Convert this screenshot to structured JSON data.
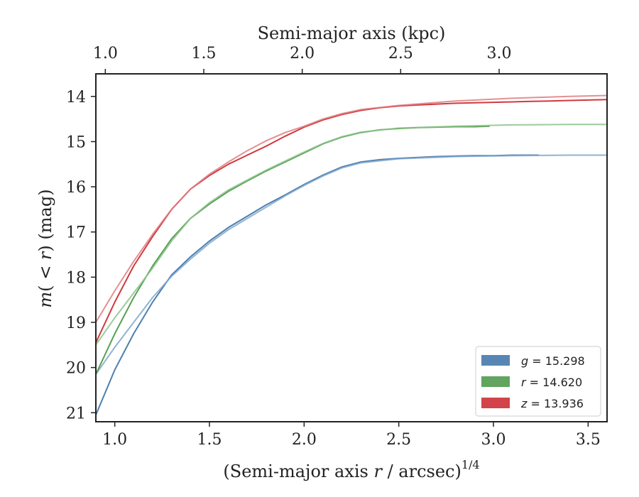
{
  "chart_data": {
    "type": "line",
    "title": "",
    "xlabel": "(Semi-major axis r / arcsec)^1/4",
    "xlabel_parts": {
      "prefix": "(Semi-major axis ",
      "var": "r",
      "middle": " / arcsec)",
      "sup": "1/4"
    },
    "ylabel": "m(<r) (mag)",
    "ylabel_parts": {
      "m": "m",
      "open": "(",
      "lt": " < ",
      "r": "r",
      "close": ")",
      "unit": " (mag)"
    },
    "top_xlabel": "Semi-major axis (kpc)",
    "xlim": [
      0.9,
      3.6
    ],
    "ylim": [
      21.2,
      13.5
    ],
    "y_inverted": true,
    "x_ticks": [
      1.0,
      1.5,
      2.0,
      2.5,
      3.0,
      3.5
    ],
    "x_tick_labels": [
      "1.0",
      "1.5",
      "2.0",
      "2.5",
      "3.0",
      "3.5"
    ],
    "y_ticks": [
      14,
      15,
      16,
      17,
      18,
      19,
      20,
      21
    ],
    "y_tick_labels": [
      "14",
      "15",
      "16",
      "17",
      "18",
      "19",
      "20",
      "21"
    ],
    "top_ticks_x": [
      0.95,
      1.47,
      1.99,
      2.51,
      3.03
    ],
    "top_tick_labels": [
      "1.0",
      "1.5",
      "2.0",
      "2.5",
      "3.0"
    ],
    "grid": false,
    "legend_position": "lower-right",
    "legend": [
      {
        "band": "g",
        "value": "15.298",
        "color": "#4e7fb0"
      },
      {
        "band": "r",
        "value": "14.620",
        "color": "#58a055"
      },
      {
        "band": "z",
        "value": "13.936",
        "color": "#cf3a3f"
      }
    ],
    "series": [
      {
        "name": "g",
        "color": "#4e7fb0",
        "alpha": 1.0,
        "x": [
          0.9,
          1.0,
          1.1,
          1.2,
          1.3,
          1.4,
          1.5,
          1.6,
          1.7,
          1.8,
          1.9,
          2.0,
          2.1,
          2.2,
          2.3,
          2.4,
          2.5,
          2.6,
          2.7,
          2.8,
          2.9,
          3.0,
          3.1,
          3.24
        ],
        "y": [
          21.05,
          20.05,
          19.25,
          18.55,
          17.95,
          17.55,
          17.2,
          16.9,
          16.65,
          16.4,
          16.18,
          15.95,
          15.74,
          15.56,
          15.45,
          15.4,
          15.37,
          15.35,
          15.33,
          15.32,
          15.31,
          15.31,
          15.3,
          15.3
        ]
      },
      {
        "name": "g",
        "color": "#7ea6cc",
        "alpha": 0.85,
        "x": [
          0.9,
          1.0,
          1.1,
          1.2,
          1.3,
          1.4,
          1.5,
          1.6,
          1.7,
          1.8,
          1.9,
          2.0,
          2.1,
          2.2,
          2.3,
          2.5,
          2.8,
          3.1,
          3.4,
          3.6
        ],
        "y": [
          20.15,
          19.55,
          19.0,
          18.45,
          17.98,
          17.6,
          17.25,
          16.95,
          16.7,
          16.45,
          16.2,
          15.97,
          15.76,
          15.58,
          15.47,
          15.38,
          15.33,
          15.31,
          15.3,
          15.3
        ]
      },
      {
        "name": "r",
        "color": "#58a055",
        "alpha": 1.0,
        "x": [
          0.9,
          1.0,
          1.1,
          1.2,
          1.3,
          1.4,
          1.5,
          1.6,
          1.7,
          1.8,
          1.9,
          2.0,
          2.1,
          2.2,
          2.3,
          2.4,
          2.5,
          2.6,
          2.7,
          2.8,
          2.9,
          2.98
        ],
        "y": [
          20.15,
          19.25,
          18.45,
          17.75,
          17.15,
          16.7,
          16.38,
          16.1,
          15.87,
          15.65,
          15.45,
          15.25,
          15.05,
          14.9,
          14.8,
          14.74,
          14.71,
          14.69,
          14.68,
          14.67,
          14.67,
          14.66
        ]
      },
      {
        "name": "r",
        "color": "#8cc28a",
        "alpha": 0.85,
        "x": [
          0.9,
          1.0,
          1.1,
          1.2,
          1.3,
          1.4,
          1.5,
          1.6,
          1.7,
          1.8,
          1.9,
          2.0,
          2.1,
          2.2,
          2.3,
          2.5,
          2.8,
          3.1,
          3.4,
          3.6
        ],
        "y": [
          19.5,
          18.9,
          18.35,
          17.8,
          17.2,
          16.7,
          16.35,
          16.07,
          15.85,
          15.63,
          15.43,
          15.23,
          15.04,
          14.89,
          14.79,
          14.7,
          14.66,
          14.63,
          14.62,
          14.62
        ]
      },
      {
        "name": "z",
        "color": "#cf3a3f",
        "alpha": 1.0,
        "x": [
          0.9,
          1.0,
          1.1,
          1.2,
          1.3,
          1.4,
          1.5,
          1.6,
          1.7,
          1.8,
          1.9,
          2.0,
          2.1,
          2.2,
          2.3,
          2.4,
          2.5,
          2.6,
          2.7,
          2.8,
          2.9,
          3.0,
          3.1,
          3.2,
          3.3,
          3.4,
          3.5,
          3.6
        ],
        "y": [
          19.45,
          18.55,
          17.75,
          17.1,
          16.5,
          16.05,
          15.75,
          15.5,
          15.3,
          15.1,
          14.88,
          14.68,
          14.52,
          14.4,
          14.31,
          14.25,
          14.21,
          14.19,
          14.17,
          14.15,
          14.14,
          14.13,
          14.12,
          14.11,
          14.1,
          14.09,
          14.08,
          14.07
        ]
      },
      {
        "name": "z",
        "color": "#e07b7f",
        "alpha": 0.85,
        "x": [
          0.9,
          1.0,
          1.1,
          1.2,
          1.3,
          1.4,
          1.5,
          1.6,
          1.7,
          1.8,
          1.9,
          2.0,
          2.1,
          2.2,
          2.3,
          2.5,
          2.8,
          3.1,
          3.4,
          3.6
        ],
        "y": [
          19.0,
          18.3,
          17.65,
          17.05,
          16.5,
          16.05,
          15.72,
          15.45,
          15.2,
          14.98,
          14.8,
          14.66,
          14.5,
          14.38,
          14.29,
          14.2,
          14.1,
          14.04,
          14.0,
          13.98
        ]
      }
    ]
  }
}
